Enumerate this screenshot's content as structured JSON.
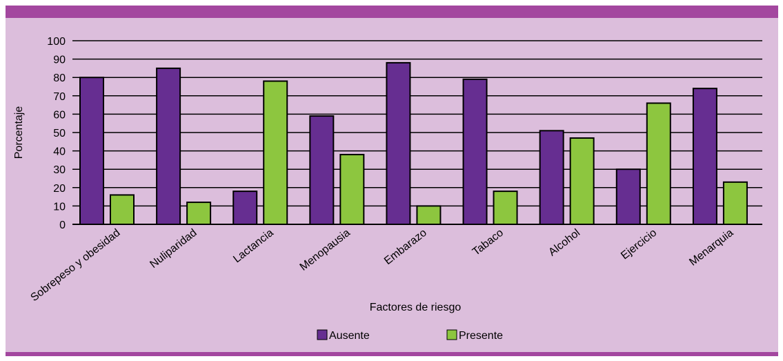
{
  "chart_data": {
    "type": "bar",
    "title": "",
    "xlabel": "Factores de riesgo",
    "ylabel": "Porcentaje",
    "ylim": [
      0,
      100
    ],
    "yticks": [
      0,
      10,
      20,
      30,
      40,
      50,
      60,
      70,
      80,
      90,
      100
    ],
    "grid": true,
    "legend_position": "bottom",
    "categories": [
      "Sobrepeso y obesidad",
      "Nuliparidad",
      "Lactancia",
      "Menopausia",
      "Embarazo",
      "Tabaco",
      "Alcohol",
      "Ejercicio",
      "Menarquia"
    ],
    "series": [
      {
        "name": "Ausente",
        "color": "#662e91",
        "values": [
          80,
          85,
          18,
          59,
          88,
          79,
          51,
          30,
          74
        ]
      },
      {
        "name": "Presente",
        "color": "#8dc63f",
        "values": [
          16,
          12,
          78,
          38,
          10,
          18,
          47,
          66,
          23
        ]
      }
    ]
  },
  "colors": {
    "background": "#dcbedc",
    "band": "#a3479f"
  }
}
